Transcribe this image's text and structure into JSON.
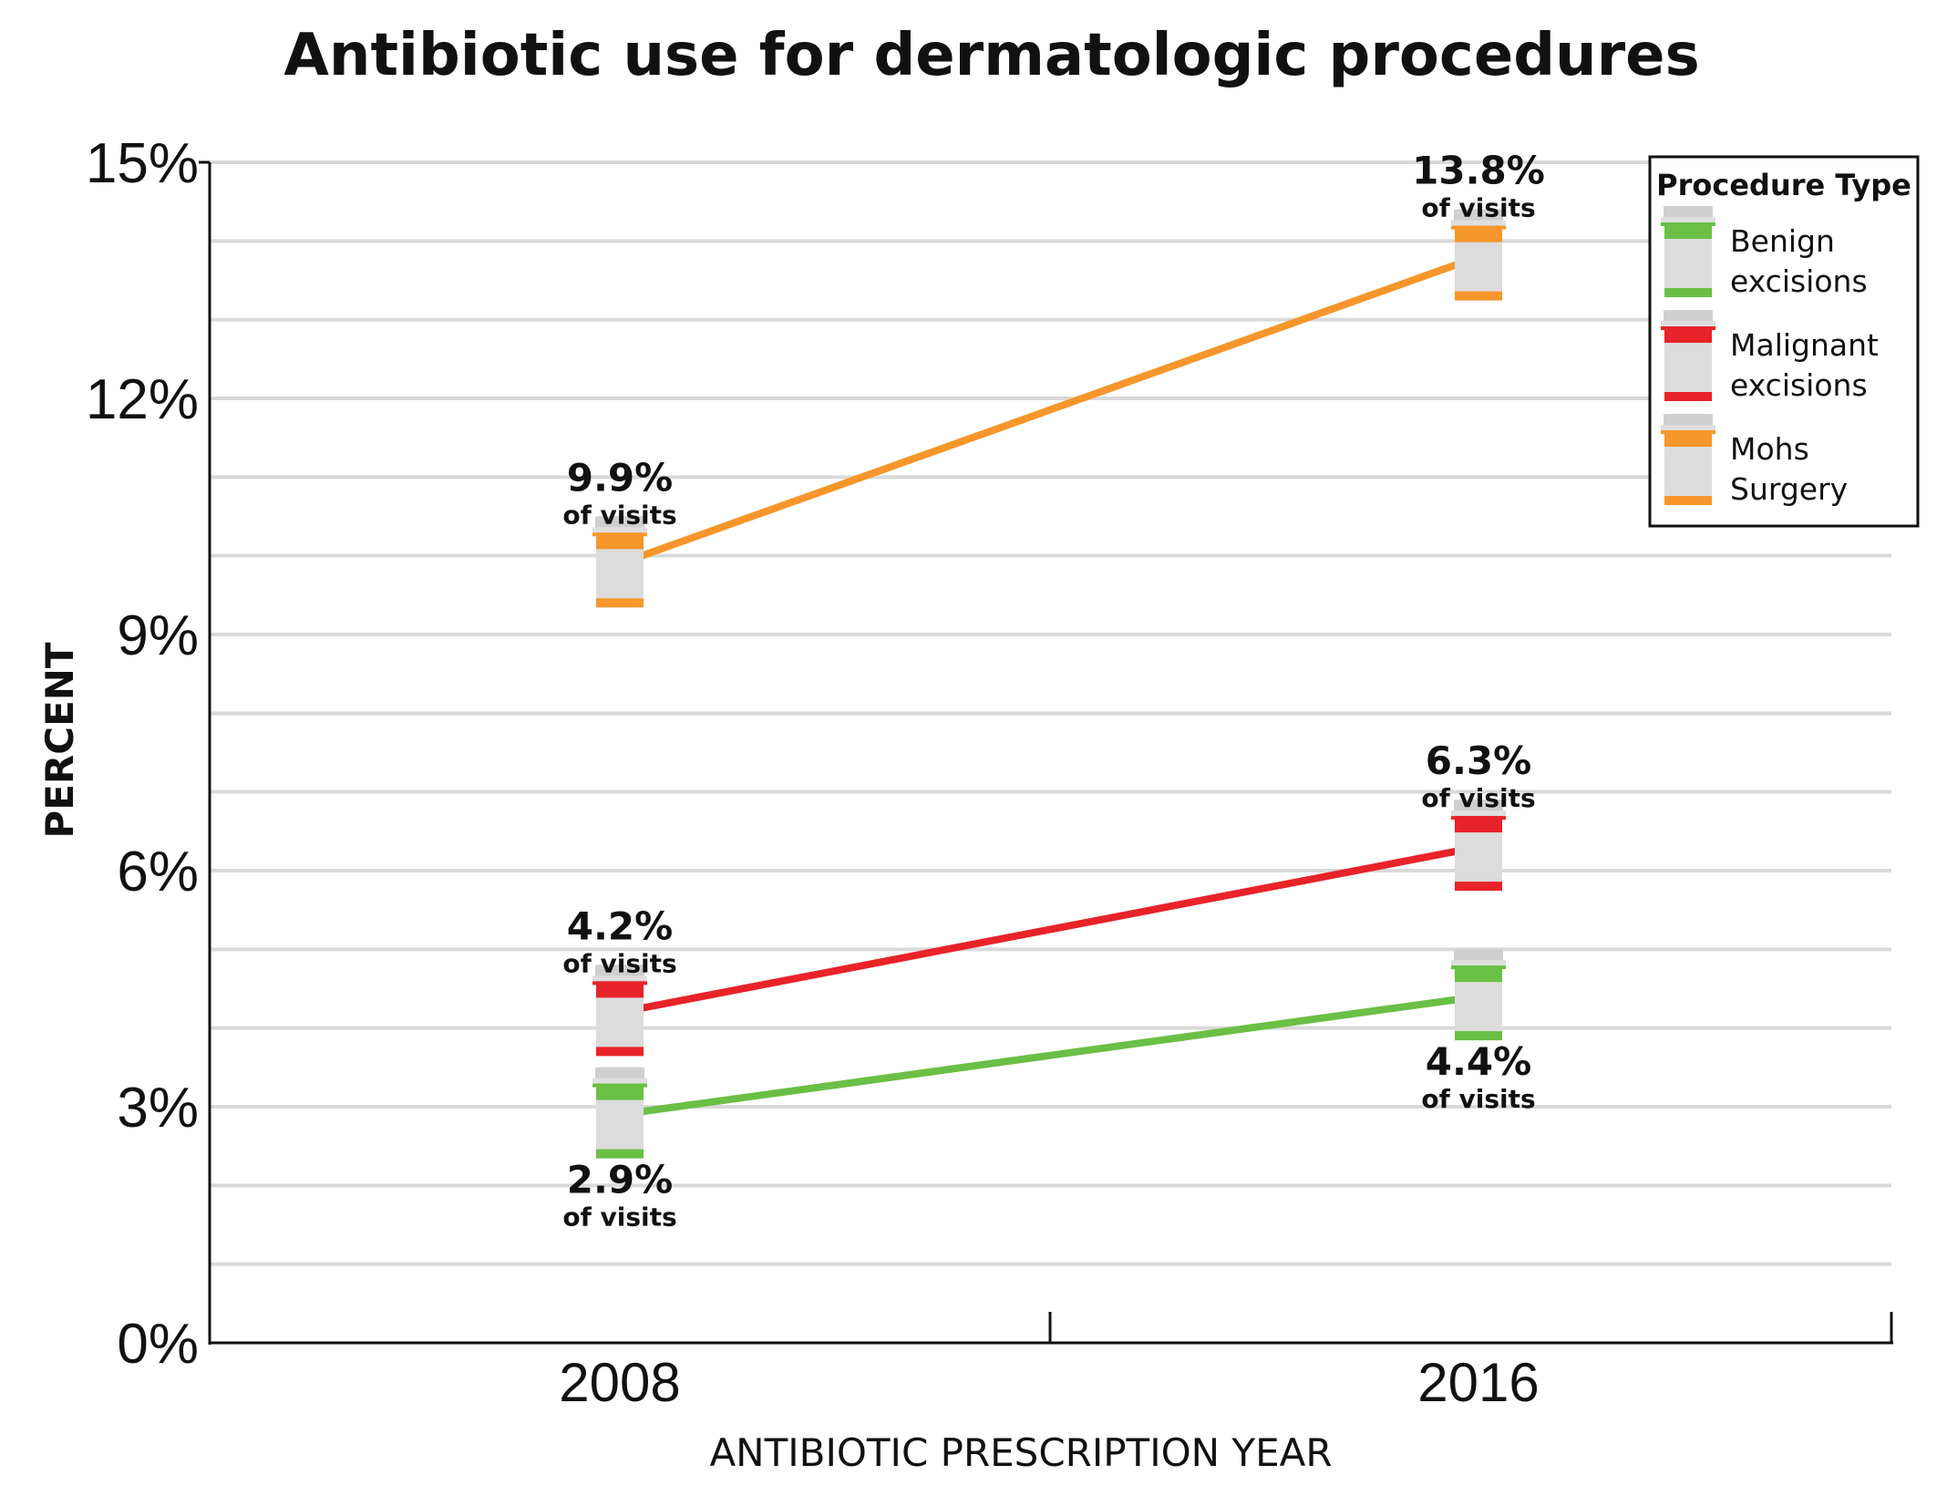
{
  "chart_data": {
    "type": "line",
    "title": "Antibiotic use for dermatologic procedures",
    "xlabel": "ANTIBIOTIC PRESCRIPTION YEAR",
    "ylabel": "PERCENT",
    "categories": [
      "2008",
      "2016"
    ],
    "ylim": [
      0,
      15
    ],
    "yticks": [
      "0%",
      "3%",
      "6%",
      "9%",
      "12%",
      "15%"
    ],
    "grid": true,
    "legend_title": "Procedure Type",
    "legend_position": "top-right",
    "point_sublabel": "of visits",
    "series": [
      {
        "name": "Benign excisions",
        "legend_lines": [
          "Benign",
          "excisions"
        ],
        "color": "#6abf45",
        "values": [
          2.9,
          4.4
        ],
        "labels": [
          "2.9%",
          "4.4%"
        ],
        "label_side": [
          "below",
          "below"
        ]
      },
      {
        "name": "Malignant excisions",
        "legend_lines": [
          "Malignant",
          "excisions"
        ],
        "color": "#e82329",
        "values": [
          4.2,
          6.3
        ],
        "labels": [
          "4.2%",
          "6.3%"
        ],
        "label_side": [
          "above",
          "above"
        ]
      },
      {
        "name": "Mohs Surgery",
        "legend_lines": [
          "Mohs",
          "Surgery"
        ],
        "color": "#f7962a",
        "values": [
          9.9,
          13.8
        ],
        "labels": [
          "9.9%",
          "13.8%"
        ],
        "label_side": [
          "above",
          "above"
        ]
      }
    ]
  }
}
